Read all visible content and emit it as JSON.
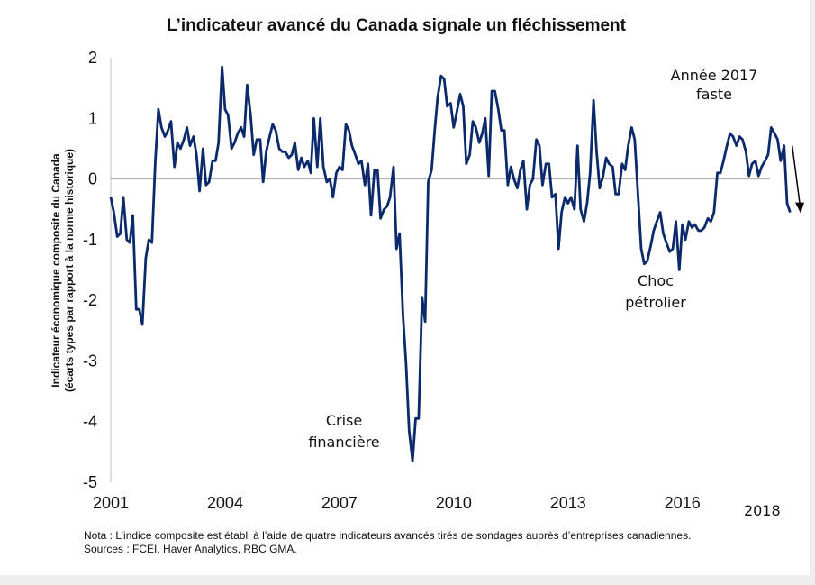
{
  "chart_data": {
    "type": "line",
    "title": "L’indicateur avancé du Canada signale un fléchissement",
    "ylabel_line1": "Indicateur économique composite du Canada",
    "ylabel_line2": "(écarts types par rapport à la norme historique)",
    "xlabel": "",
    "ylim": [
      -5,
      2
    ],
    "xlim": [
      2001,
      2018.3
    ],
    "yticks": [
      2,
      1,
      0,
      -1,
      -2,
      -3,
      -4,
      -5
    ],
    "ytick_labels": [
      "2",
      "1",
      "0",
      "-1",
      "-2",
      "-3",
      "-4",
      "-5"
    ],
    "xticks": [
      2001,
      2004,
      2007,
      2010,
      2013,
      2016
    ],
    "xtick_labels": [
      "2001",
      "2004",
      "2007",
      "2010",
      "2013",
      "2016"
    ],
    "xtick_last": {
      "value": 2018,
      "label": "2018"
    },
    "grid": false,
    "zero_line": true,
    "series_color": "#0b2a6b",
    "series": [
      {
        "values": [
          [
            2001.0,
            -0.3
          ],
          [
            2001.08,
            -0.55
          ],
          [
            2001.17,
            -0.95
          ],
          [
            2001.25,
            -0.9
          ],
          [
            2001.33,
            -0.3
          ],
          [
            2001.42,
            -1.0
          ],
          [
            2001.5,
            -1.05
          ],
          [
            2001.58,
            -0.6
          ],
          [
            2001.67,
            -2.15
          ],
          [
            2001.75,
            -2.15
          ],
          [
            2001.83,
            -2.4
          ],
          [
            2001.92,
            -1.3
          ],
          [
            2002.0,
            -1.0
          ],
          [
            2002.08,
            -1.05
          ],
          [
            2002.17,
            0.3
          ],
          [
            2002.25,
            1.15
          ],
          [
            2002.33,
            0.85
          ],
          [
            2002.42,
            0.7
          ],
          [
            2002.5,
            0.8
          ],
          [
            2002.58,
            0.95
          ],
          [
            2002.67,
            0.2
          ],
          [
            2002.75,
            0.6
          ],
          [
            2002.83,
            0.5
          ],
          [
            2002.92,
            0.65
          ],
          [
            2003.0,
            0.85
          ],
          [
            2003.08,
            0.55
          ],
          [
            2003.17,
            0.7
          ],
          [
            2003.25,
            0.4
          ],
          [
            2003.33,
            -0.2
          ],
          [
            2003.42,
            0.5
          ],
          [
            2003.5,
            -0.1
          ],
          [
            2003.58,
            -0.05
          ],
          [
            2003.67,
            0.3
          ],
          [
            2003.75,
            0.3
          ],
          [
            2003.83,
            0.6
          ],
          [
            2003.92,
            1.85
          ],
          [
            2004.0,
            1.15
          ],
          [
            2004.08,
            1.05
          ],
          [
            2004.17,
            0.5
          ],
          [
            2004.25,
            0.6
          ],
          [
            2004.33,
            0.75
          ],
          [
            2004.42,
            0.85
          ],
          [
            2004.5,
            0.7
          ],
          [
            2004.58,
            1.55
          ],
          [
            2004.67,
            1.05
          ],
          [
            2004.75,
            0.4
          ],
          [
            2004.83,
            0.65
          ],
          [
            2004.92,
            0.65
          ],
          [
            2005.0,
            -0.05
          ],
          [
            2005.08,
            0.45
          ],
          [
            2005.17,
            0.7
          ],
          [
            2005.25,
            0.9
          ],
          [
            2005.33,
            0.8
          ],
          [
            2005.42,
            0.5
          ],
          [
            2005.5,
            0.45
          ],
          [
            2005.58,
            0.45
          ],
          [
            2005.67,
            0.35
          ],
          [
            2005.75,
            0.4
          ],
          [
            2005.83,
            0.6
          ],
          [
            2005.92,
            0.15
          ],
          [
            2006.0,
            0.35
          ],
          [
            2006.08,
            0.2
          ],
          [
            2006.17,
            0.3
          ],
          [
            2006.25,
            0.1
          ],
          [
            2006.33,
            1.0
          ],
          [
            2006.42,
            0.2
          ],
          [
            2006.5,
            1.0
          ],
          [
            2006.58,
            0.2
          ],
          [
            2006.67,
            -0.05
          ],
          [
            2006.75,
            0.0
          ],
          [
            2006.83,
            -0.3
          ],
          [
            2006.92,
            0.1
          ],
          [
            2007.0,
            0.2
          ],
          [
            2007.08,
            0.15
          ],
          [
            2007.17,
            0.9
          ],
          [
            2007.25,
            0.8
          ],
          [
            2007.33,
            0.55
          ],
          [
            2007.42,
            0.4
          ],
          [
            2007.5,
            0.25
          ],
          [
            2007.58,
            0.3
          ],
          [
            2007.67,
            -0.1
          ],
          [
            2007.75,
            0.25
          ],
          [
            2007.83,
            -0.6
          ],
          [
            2007.92,
            0.15
          ],
          [
            2008.0,
            0.15
          ],
          [
            2008.08,
            -0.65
          ],
          [
            2008.17,
            -0.5
          ],
          [
            2008.25,
            -0.45
          ],
          [
            2008.33,
            -0.3
          ],
          [
            2008.42,
            0.2
          ],
          [
            2008.5,
            -1.15
          ],
          [
            2008.58,
            -0.9
          ],
          [
            2008.67,
            -2.25
          ],
          [
            2008.75,
            -3.05
          ],
          [
            2008.83,
            -4.15
          ],
          [
            2008.92,
            -4.65
          ],
          [
            2009.0,
            -3.95
          ],
          [
            2009.08,
            -3.95
          ],
          [
            2009.17,
            -1.95
          ],
          [
            2009.25,
            -2.35
          ],
          [
            2009.33,
            -0.05
          ],
          [
            2009.42,
            0.15
          ],
          [
            2009.5,
            0.8
          ],
          [
            2009.58,
            1.35
          ],
          [
            2009.67,
            1.7
          ],
          [
            2009.75,
            1.65
          ],
          [
            2009.83,
            1.2
          ],
          [
            2009.92,
            1.25
          ],
          [
            2010.0,
            0.85
          ],
          [
            2010.08,
            1.1
          ],
          [
            2010.17,
            1.4
          ],
          [
            2010.25,
            1.2
          ],
          [
            2010.33,
            0.25
          ],
          [
            2010.42,
            0.4
          ],
          [
            2010.5,
            0.95
          ],
          [
            2010.58,
            0.85
          ],
          [
            2010.67,
            0.6
          ],
          [
            2010.75,
            0.75
          ],
          [
            2010.83,
            1.0
          ],
          [
            2010.92,
            0.05
          ],
          [
            2011.0,
            1.45
          ],
          [
            2011.08,
            1.45
          ],
          [
            2011.17,
            1.15
          ],
          [
            2011.25,
            0.8
          ],
          [
            2011.33,
            0.8
          ],
          [
            2011.42,
            -0.1
          ],
          [
            2011.5,
            0.2
          ],
          [
            2011.58,
            0.0
          ],
          [
            2011.67,
            -0.15
          ],
          [
            2011.75,
            0.15
          ],
          [
            2011.83,
            0.3
          ],
          [
            2011.92,
            -0.5
          ],
          [
            2012.0,
            -0.1
          ],
          [
            2012.08,
            0.0
          ],
          [
            2012.17,
            0.65
          ],
          [
            2012.25,
            0.55
          ],
          [
            2012.33,
            -0.1
          ],
          [
            2012.42,
            0.25
          ],
          [
            2012.5,
            0.25
          ],
          [
            2012.58,
            -0.3
          ],
          [
            2012.67,
            -0.25
          ],
          [
            2012.75,
            -1.15
          ],
          [
            2012.83,
            -0.55
          ],
          [
            2012.92,
            -0.3
          ],
          [
            2013.0,
            -0.4
          ],
          [
            2013.08,
            -0.3
          ],
          [
            2013.17,
            -0.5
          ],
          [
            2013.25,
            0.55
          ],
          [
            2013.33,
            -0.5
          ],
          [
            2013.42,
            -0.7
          ],
          [
            2013.5,
            -0.4
          ],
          [
            2013.58,
            0.1
          ],
          [
            2013.67,
            1.3
          ],
          [
            2013.75,
            0.45
          ],
          [
            2013.83,
            -0.15
          ],
          [
            2013.92,
            0.05
          ],
          [
            2014.0,
            0.35
          ],
          [
            2014.08,
            0.25
          ],
          [
            2014.17,
            0.2
          ],
          [
            2014.25,
            -0.25
          ],
          [
            2014.33,
            -0.25
          ],
          [
            2014.42,
            0.25
          ],
          [
            2014.5,
            0.15
          ],
          [
            2014.58,
            0.55
          ],
          [
            2014.67,
            0.85
          ],
          [
            2014.75,
            0.65
          ],
          [
            2014.83,
            -0.2
          ],
          [
            2014.92,
            -1.15
          ],
          [
            2015.0,
            -1.4
          ],
          [
            2015.08,
            -1.35
          ],
          [
            2015.17,
            -1.1
          ],
          [
            2015.25,
            -0.85
          ],
          [
            2015.33,
            -0.7
          ],
          [
            2015.42,
            -0.55
          ],
          [
            2015.5,
            -0.9
          ],
          [
            2015.58,
            -1.05
          ],
          [
            2015.67,
            -1.2
          ],
          [
            2015.75,
            -1.15
          ],
          [
            2015.83,
            -0.7
          ],
          [
            2015.92,
            -1.5
          ],
          [
            2016.0,
            -0.75
          ],
          [
            2016.08,
            -1.0
          ],
          [
            2016.17,
            -0.7
          ],
          [
            2016.25,
            -0.8
          ],
          [
            2016.33,
            -0.75
          ],
          [
            2016.42,
            -0.85
          ],
          [
            2016.5,
            -0.85
          ],
          [
            2016.58,
            -0.8
          ],
          [
            2016.67,
            -0.65
          ],
          [
            2016.75,
            -0.7
          ],
          [
            2016.83,
            -0.55
          ],
          [
            2016.92,
            0.1
          ],
          [
            2017.0,
            0.1
          ],
          [
            2017.08,
            0.3
          ],
          [
            2017.17,
            0.55
          ],
          [
            2017.25,
            0.75
          ],
          [
            2017.33,
            0.7
          ],
          [
            2017.42,
            0.55
          ],
          [
            2017.5,
            0.7
          ],
          [
            2017.58,
            0.65
          ],
          [
            2017.67,
            0.45
          ],
          [
            2017.75,
            0.05
          ],
          [
            2017.83,
            0.25
          ],
          [
            2017.92,
            0.3
          ],
          [
            2018.0,
            0.05
          ],
          [
            2018.08,
            0.2
          ],
          [
            2018.17,
            0.3
          ],
          [
            2018.25,
            0.4
          ],
          [
            2018.33,
            0.85
          ],
          [
            2018.42,
            0.75
          ],
          [
            2018.5,
            0.65
          ],
          [
            2018.58,
            0.3
          ],
          [
            2018.67,
            0.55
          ],
          [
            2018.75,
            -0.4
          ],
          [
            2018.83,
            -0.55
          ]
        ]
      }
    ],
    "annotations": [
      {
        "lines": [
          "Année 2017",
          "faste"
        ]
      },
      {
        "lines": [
          "Crise",
          "financière"
        ]
      },
      {
        "lines": [
          "Choc",
          "pétrolier"
        ]
      }
    ],
    "arrow": {
      "from": [
        2018.6,
        0.55
      ],
      "to": [
        2018.75,
        -0.55
      ]
    }
  },
  "footnote": {
    "line1": "Nota : L’indice composite est établi à l’aide de quatre indicateurs avancés tirés de sondages auprès d’entreprises canadiennes.",
    "line2": "Sources : FCEI, Haver Analytics, RBC GMA."
  }
}
